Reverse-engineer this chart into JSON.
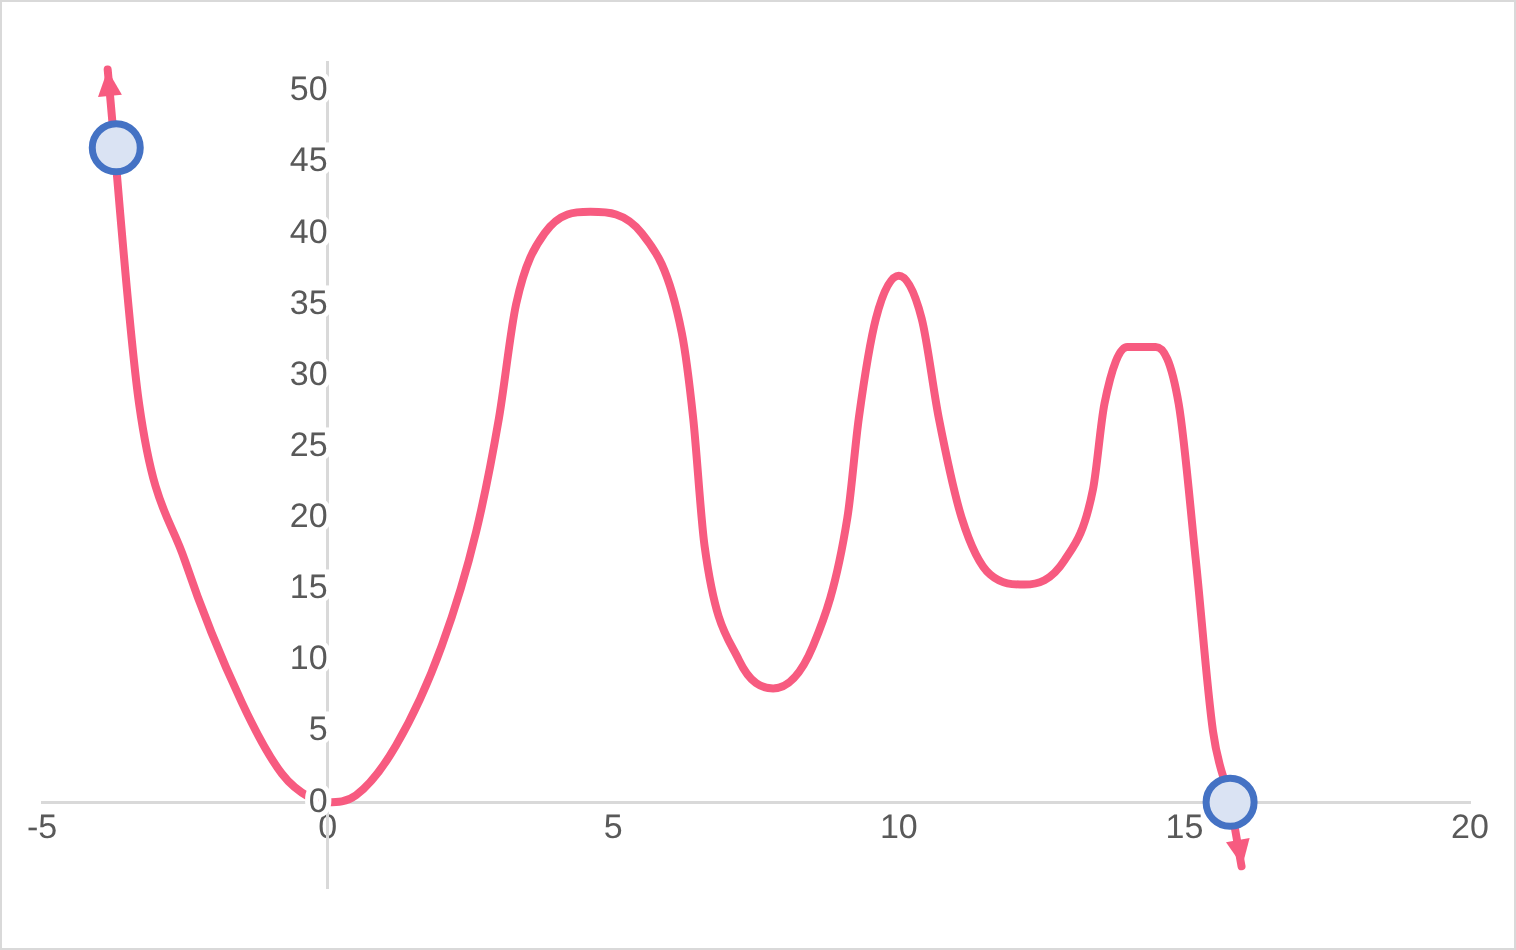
{
  "chart_data": {
    "type": "line",
    "xlim": [
      -5,
      20
    ],
    "xticks": [
      -5,
      0,
      5,
      10,
      15,
      20
    ],
    "ylim": [
      -6,
      52
    ],
    "yticks": [
      0,
      5,
      10,
      15,
      20,
      25,
      30,
      35,
      40,
      45,
      50
    ],
    "grid": false,
    "legend": false,
    "marker": "none",
    "line_style": "solid",
    "series": [
      {
        "color": "#f75b80",
        "x": [
          -3.85,
          -3.3,
          -2.5,
          -1.5,
          -0.8,
          -0.3,
          0,
          0.5,
          1.2,
          2,
          2.6,
          3,
          3.3,
          3.8,
          4.6,
          5.5,
          6.2,
          6.4,
          6.6,
          7.2,
          7.8,
          8.5,
          9.1,
          9.3,
          9.6,
          10,
          10.4,
          10.7,
          11.1,
          11.6,
          12.2,
          12.9,
          13.4,
          13.6,
          14,
          14.5,
          14.9,
          15.2,
          15.5,
          15.8,
          16
        ],
        "values": [
          51.5,
          28,
          17,
          7,
          2,
          0.3,
          0,
          0.5,
          4,
          11,
          19,
          27,
          35,
          40,
          41.5,
          40,
          33,
          27,
          18,
          10,
          8,
          11,
          20,
          27,
          34,
          37,
          34,
          27,
          20,
          16,
          15.3,
          17,
          22,
          28,
          32,
          32,
          28,
          17,
          5,
          0,
          -4.5
        ]
      },
      {
        "type": "scatter",
        "marker": "circle",
        "color": "#4472c4",
        "x": [
          -3.7,
          15.8
        ],
        "values": [
          46,
          0
        ]
      }
    ]
  }
}
